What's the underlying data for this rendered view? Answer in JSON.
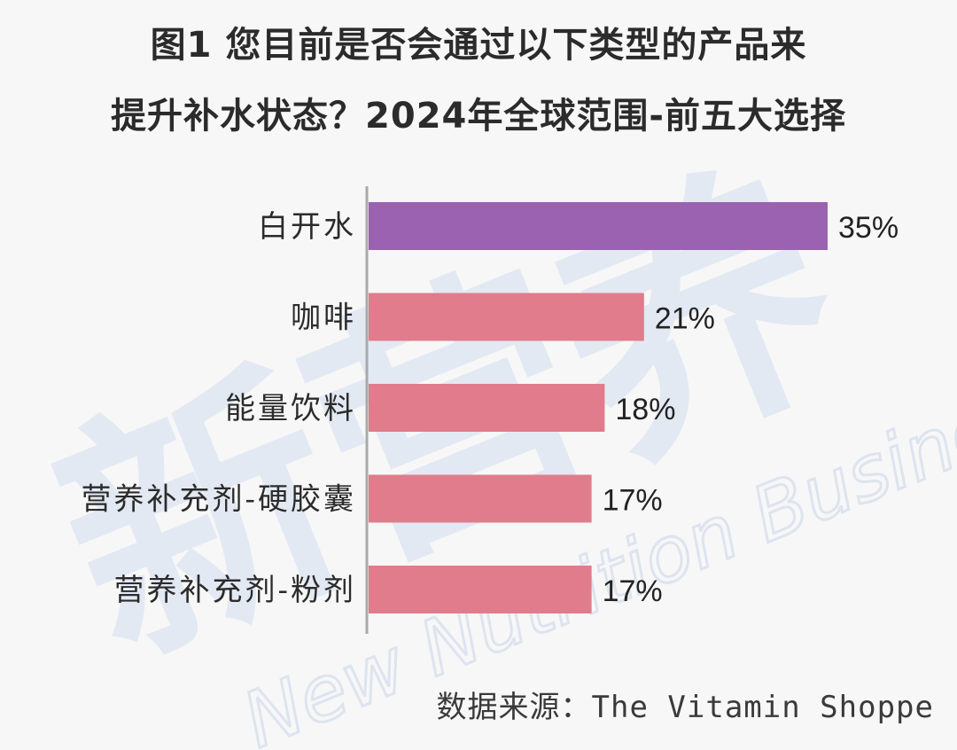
{
  "header": {
    "title_line1": "图1 您目前是否会通过以下类型的产品来",
    "title_line2": "提升补水状态？2024年全球范围-前五大选择"
  },
  "chart_data": {
    "type": "bar",
    "orientation": "horizontal",
    "categories": [
      "白开水",
      "咖啡",
      "能量饮料",
      "营养补充剂-硬胶囊",
      "营养补充剂-粉剂"
    ],
    "values": [
      35,
      21,
      18,
      17,
      17
    ],
    "value_labels": [
      "35%",
      "21%",
      "18%",
      "17%",
      "17%"
    ],
    "unit": "%",
    "colors": [
      "#9a62b0",
      "#e07c8b",
      "#e07c8b",
      "#e07c8b",
      "#e07c8b"
    ],
    "xlim": [
      0,
      35
    ],
    "grid": false,
    "legend": "none"
  },
  "footer": {
    "source": "数据来源：The Vitamin Shoppe"
  },
  "watermark": {
    "text_cn": "新营养",
    "text_en": "New Nutrition Business",
    "color": "#dfe6f2"
  }
}
